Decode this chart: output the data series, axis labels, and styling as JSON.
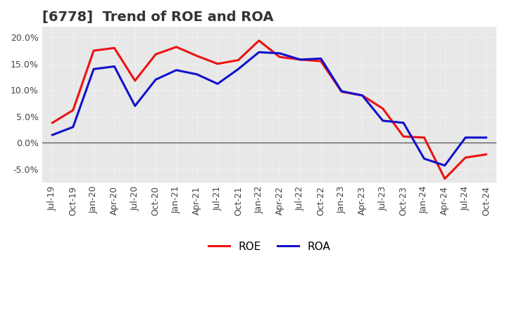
{
  "title": "[6778]  Trend of ROE and ROA",
  "ylim": [
    -0.075,
    0.22
  ],
  "yticks": [
    -0.05,
    0.0,
    0.05,
    0.1,
    0.15,
    0.2
  ],
  "ytick_labels": [
    "-5.0%",
    "0.0%",
    "5.0%",
    "10.0%",
    "15.0%",
    "20.0%"
  ],
  "background_color": "#ffffff",
  "plot_bg_color": "#e8e8e8",
  "grid_color": "#ffffff",
  "labels": [
    "Jul-19",
    "Oct-19",
    "Jan-20",
    "Apr-20",
    "Jul-20",
    "Oct-20",
    "Jan-21",
    "Apr-21",
    "Jul-21",
    "Oct-21",
    "Jan-22",
    "Apr-22",
    "Jul-22",
    "Oct-22",
    "Jan-23",
    "Apr-23",
    "Jul-23",
    "Oct-23",
    "Jan-24",
    "Apr-24",
    "Jul-24",
    "Oct-24"
  ],
  "ROE": [
    0.038,
    0.062,
    0.175,
    0.18,
    0.118,
    0.168,
    0.182,
    0.165,
    0.15,
    0.157,
    0.194,
    0.163,
    0.158,
    0.155,
    0.097,
    0.09,
    0.065,
    0.012,
    0.01,
    -0.068,
    -0.028,
    -0.022
  ],
  "ROA": [
    0.015,
    0.03,
    0.14,
    0.145,
    0.07,
    0.12,
    0.138,
    0.13,
    0.112,
    0.14,
    0.172,
    0.17,
    0.158,
    0.16,
    0.098,
    0.09,
    0.042,
    0.038,
    -0.03,
    -0.043,
    0.01,
    0.01
  ],
  "roe_color": "#ee1111",
  "roa_color": "#1111cc",
  "line_width": 2.2,
  "title_fontsize": 14,
  "tick_fontsize": 9,
  "legend_fontsize": 11
}
